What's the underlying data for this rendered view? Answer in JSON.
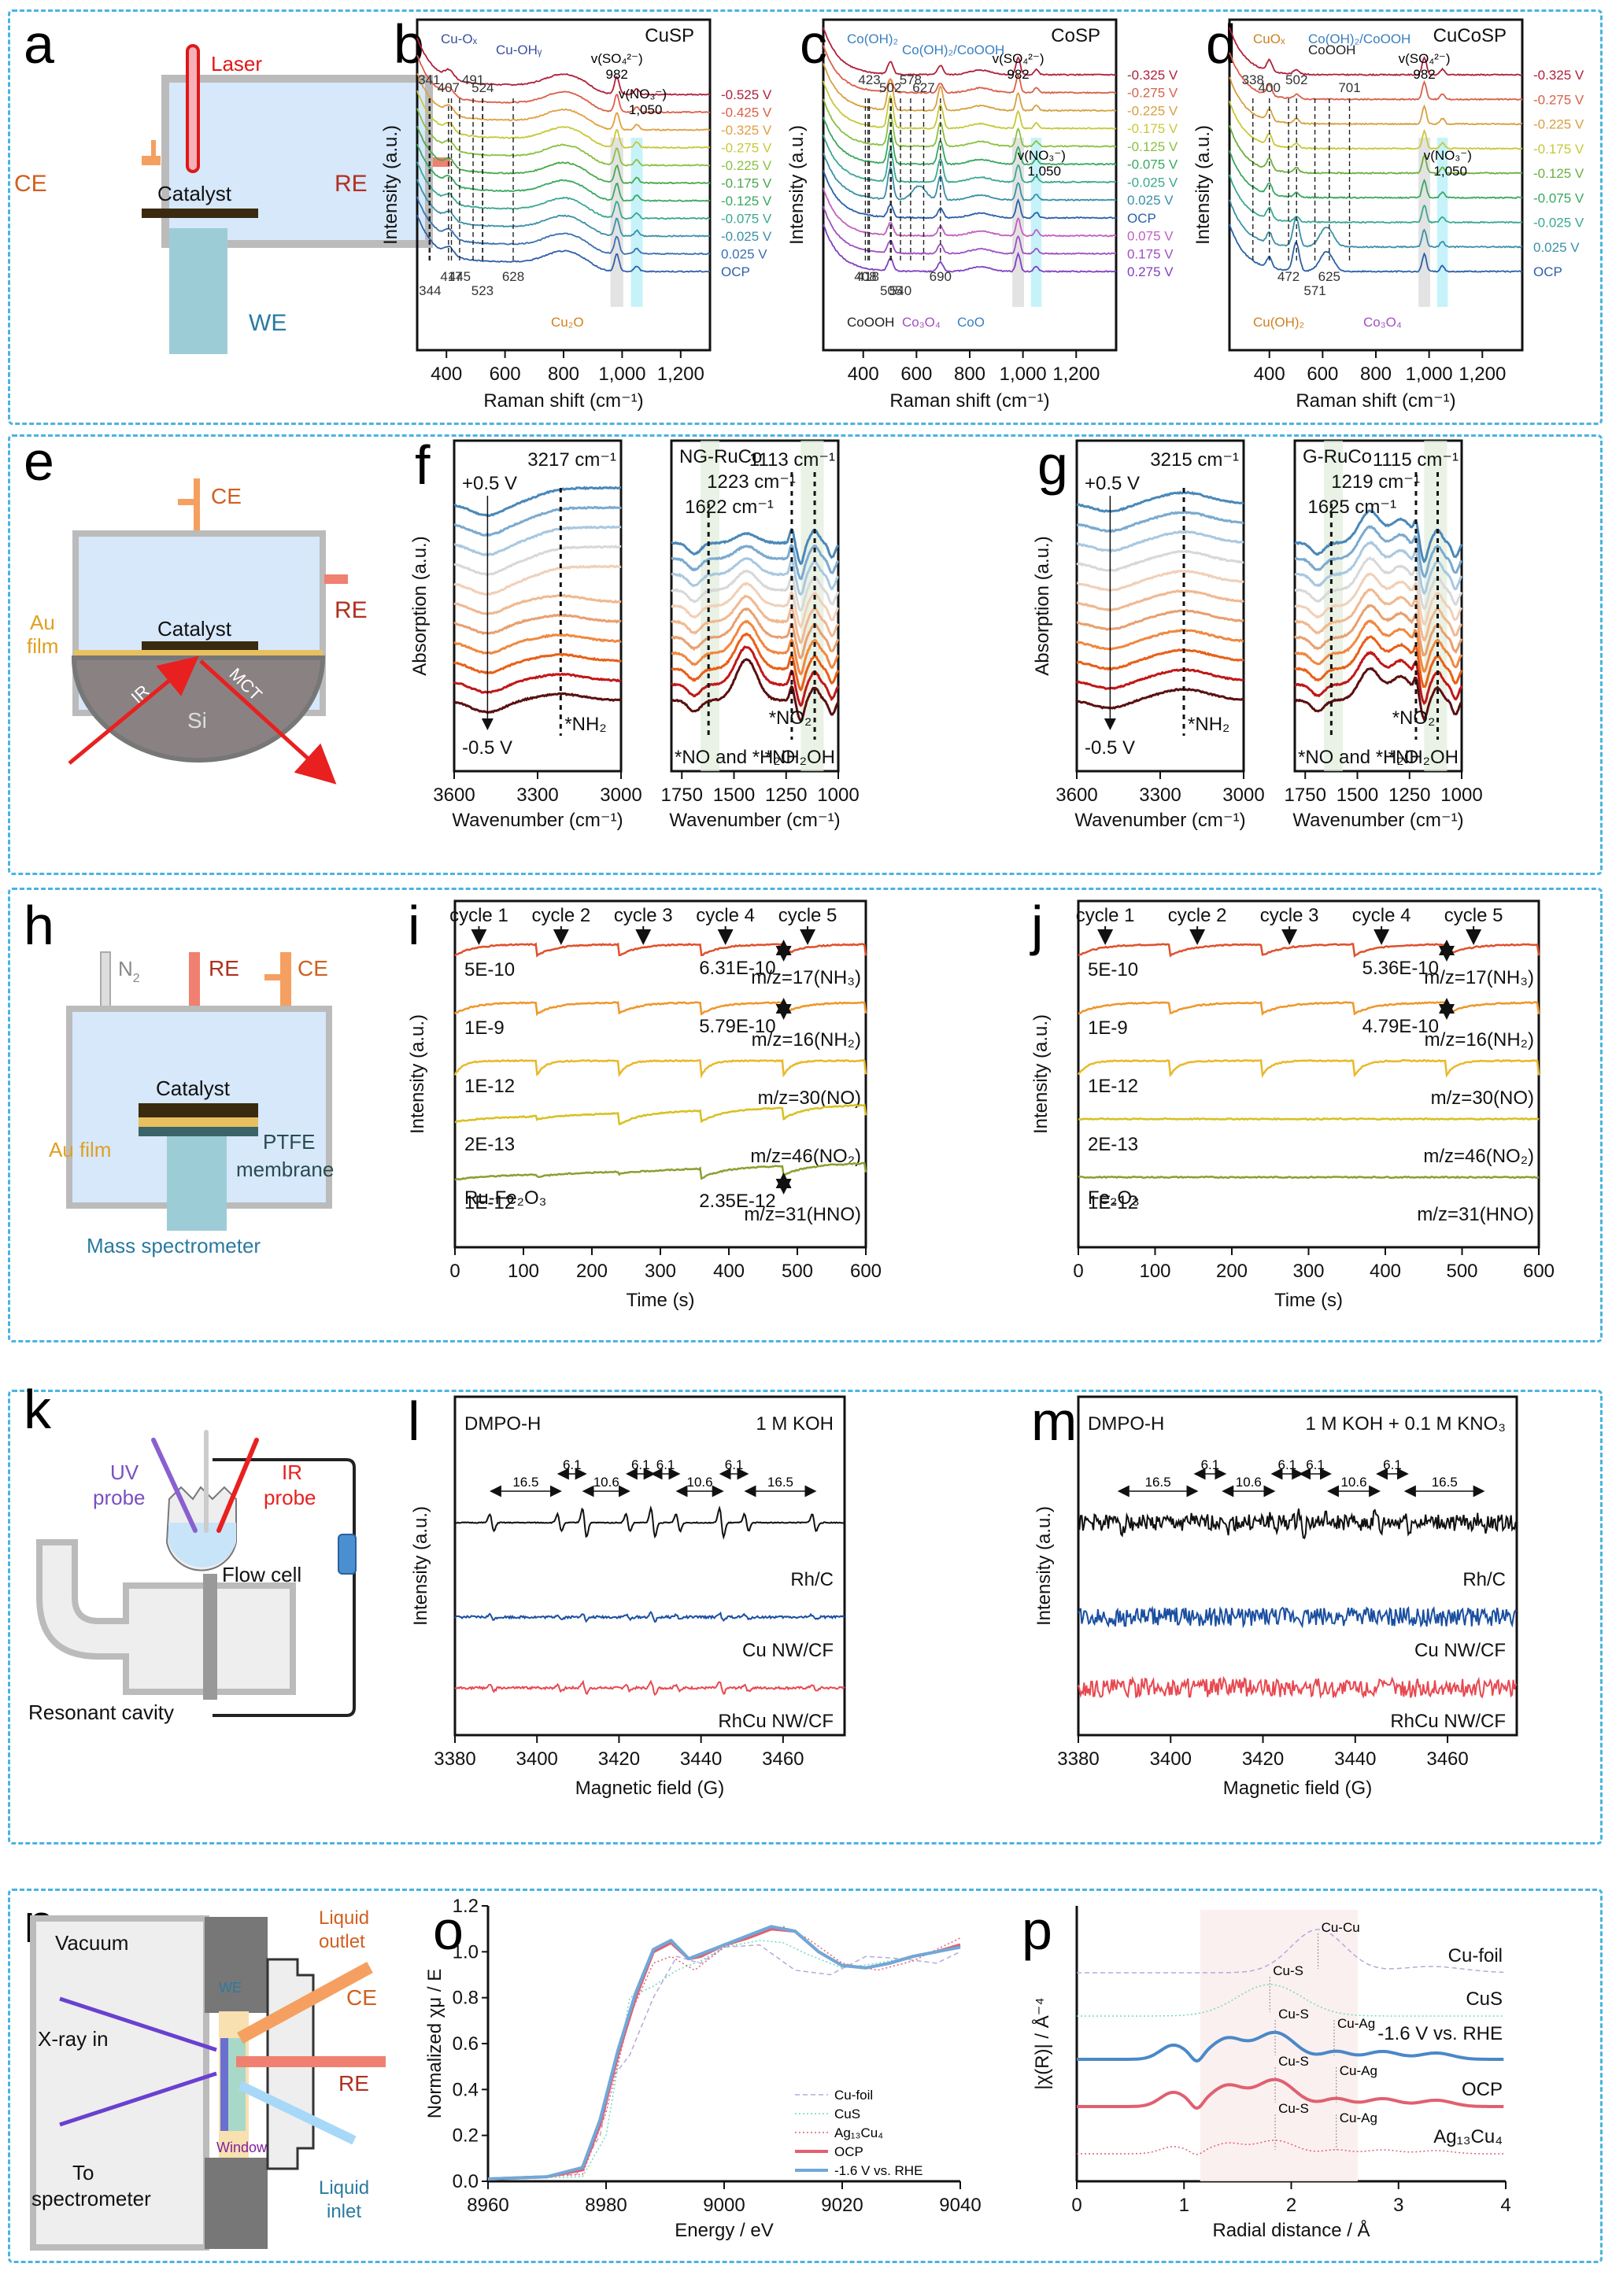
{
  "figure": {
    "panels": {
      "a": {
        "label": "a",
        "laser": "Laser",
        "ce": "CE",
        "re": "RE",
        "catalyst": "Catalyst",
        "we": "WE"
      },
      "e": {
        "label": "e",
        "ce": "CE",
        "re": "RE",
        "catalyst": "Catalyst",
        "au_film_1": "Au",
        "au_film_2": "film",
        "ir": "IR",
        "mct": "MCT",
        "si": "Si"
      },
      "h": {
        "label": "h",
        "n2": "N",
        "n2_sub": "2",
        "re": "RE",
        "ce": "CE",
        "catalyst": "Catalyst",
        "au_film": "Au film",
        "ptfe_1": "PTFE",
        "ptfe_2": "membrane",
        "ms": "Mass spectrometer"
      },
      "k": {
        "label": "k",
        "uv_1": "UV",
        "uv_2": "probe",
        "ir_1": "IR",
        "ir_2": "probe",
        "flow_cell": "Flow cell",
        "cavity": "Resonant cavity"
      },
      "n": {
        "label": "n",
        "vacuum": "Vacuum",
        "xray": "X-ray in",
        "to": "To",
        "spectrometer": "spectrometer",
        "window": "Window",
        "we": "WE",
        "ce": "CE",
        "re": "RE",
        "outlet_1": "Liquid",
        "outlet_2": "outlet",
        "inlet_1": "Liquid",
        "inlet_2": "inlet"
      }
    }
  },
  "chart_data": [
    {
      "id": "b",
      "type": "line",
      "panel_label": "b",
      "title": "CuSP",
      "xlabel": "Raman shift (cm⁻¹)",
      "ylabel": "Intensity (a.u.)",
      "xlim": [
        300,
        1300
      ],
      "xticks": [
        "400",
        "600",
        "800",
        "1,000",
        "1,200"
      ],
      "xtick_values": [
        400,
        600,
        800,
        1000,
        1200
      ],
      "series_labels": [
        "-0.525 V",
        "-0.425 V",
        "-0.325 V",
        "-0.275 V",
        "-0.225 V",
        "-0.175 V",
        "-0.125 V",
        "-0.075 V",
        "-0.025 V",
        "0.025 V",
        "OCP"
      ],
      "series_colors": [
        "#b0203a",
        "#d9604a",
        "#e0a040",
        "#c8c83a",
        "#8ac040",
        "#4aa84a",
        "#3aa860",
        "#3aa890",
        "#3a90a8",
        "#3a70b0",
        "#3060a8"
      ],
      "peaks": [
        341,
        407,
        491,
        524,
        445,
        344,
        417,
        523,
        628,
        982,
        1050
      ],
      "annotations": {
        "cu_ox": "Cu-Oₓ",
        "cu_oh": "Cu-OHᵧ",
        "cu2o": "Cu₂O",
        "so4": "v(SO₄²⁻)",
        "so4_val": "982",
        "no3": "v(NO₃⁻)",
        "no3_val": "1,050",
        "p341": "341",
        "p407": "407",
        "p491": "491",
        "p524": "524",
        "p445": "445",
        "p344": "344",
        "p417": "417",
        "p523": "523",
        "p628": "628"
      }
    },
    {
      "id": "c",
      "type": "line",
      "panel_label": "c",
      "title": "CoSP",
      "xlabel": "Raman shift (cm⁻¹)",
      "ylabel": "Intensity (a.u.)",
      "xlim": [
        250,
        1350
      ],
      "xticks": [
        "400",
        "600",
        "800",
        "1,000",
        "1,200"
      ],
      "xtick_values": [
        400,
        600,
        800,
        1000,
        1200
      ],
      "series_labels": [
        "-0.325 V",
        "-0.275 V",
        "-0.225 V",
        "-0.175 V",
        "-0.125 V",
        "-0.075 V",
        "-0.025 V",
        "0.025 V",
        "OCP",
        "0.075 V",
        "0.175 V",
        "0.275 V"
      ],
      "series_colors": [
        "#b0203a",
        "#d9604a",
        "#d8a040",
        "#c8c83a",
        "#8ac040",
        "#3aa860",
        "#3aa890",
        "#3a90a8",
        "#2a60a8",
        "#c060c0",
        "#a050c0",
        "#8040c0"
      ],
      "peaks": [
        423,
        502,
        578,
        627,
        408,
        540,
        418,
        505,
        690,
        982,
        1050
      ],
      "annotations": {
        "coh2": "Co(OH)₂",
        "cooh_mix": "Co(OH)₂/CoOOH",
        "coo": "CoO",
        "cooh": "CoOOH",
        "co3o4": "Co₃O₄",
        "so4": "v(SO₄²⁻)",
        "so4_val": "982",
        "no3": "v(NO₃⁻)",
        "no3_val": "1,050",
        "p423": "423",
        "p502": "502",
        "p578": "578",
        "p627": "627",
        "p408": "408",
        "p540": "540",
        "p418": "418",
        "p505": "505",
        "p690": "690"
      }
    },
    {
      "id": "d",
      "type": "line",
      "panel_label": "d",
      "title": "CuCoSP",
      "xlabel": "Raman shift (cm⁻¹)",
      "ylabel": "Intensity (a.u.)",
      "xlim": [
        250,
        1350
      ],
      "xticks": [
        "400",
        "600",
        "800",
        "1,000",
        "1,200"
      ],
      "xtick_values": [
        400,
        600,
        800,
        1000,
        1200
      ],
      "series_labels": [
        "-0.325 V",
        "-0.275 V",
        "-0.225 V",
        "-0.175 V",
        "-0.125 V",
        "-0.075 V",
        "-0.025 V",
        "0.025 V",
        "OCP"
      ],
      "series_colors": [
        "#b0203a",
        "#d9604a",
        "#d8a040",
        "#c8c83a",
        "#6ab040",
        "#3aa860",
        "#3aa890",
        "#3a90a8",
        "#2a60a8"
      ],
      "peaks": [
        338,
        400,
        502,
        701,
        472,
        571,
        625,
        982,
        1050
      ],
      "annotations": {
        "cuox": "CuOₓ",
        "cooh": "CoOOH",
        "co3o4": "Co₃O₄",
        "cuoh2": "Cu(OH)₂",
        "cooh_mix": "Co(OH)₂/CoOOH",
        "so4": "v(SO₄²⁻)",
        "so4_val": "982",
        "no3": "v(NO₃⁻)",
        "no3_val": "1,050",
        "p338": "338",
        "p400": "400",
        "p502": "502",
        "p701": "701",
        "p472": "472",
        "p571": "571",
        "p625": "625"
      }
    },
    {
      "id": "f1",
      "type": "line",
      "panel_label": "f",
      "xlabel": "Wavenumber (cm⁻¹)",
      "ylabel": "Absorption (a.u.)",
      "xlim": [
        3600,
        3000
      ],
      "xticks": [
        "3600",
        "3300",
        "3000"
      ],
      "xtick_values": [
        3600,
        3300,
        3000
      ],
      "peak": "3217 cm⁻¹",
      "peak_value": 3217,
      "top_label": "+0.5 V",
      "bottom_label": "-0.5 V",
      "species": "*NH₂",
      "curve_count": 11
    },
    {
      "id": "f2",
      "type": "line",
      "sample": "NG-RuCo",
      "xlabel": "Wavenumber (cm⁻¹)",
      "xlim": [
        1800,
        1000
      ],
      "xticks": [
        "1750",
        "1500",
        "1250",
        "1000"
      ],
      "xtick_values": [
        1750,
        1500,
        1250,
        1000
      ],
      "peaks": [
        "1622 cm⁻¹",
        "1223 cm⁻¹",
        "1113 cm⁻¹"
      ],
      "peak_values": [
        1622,
        1223,
        1113
      ],
      "species": [
        "*NO and *H₂O",
        "*NO₂",
        "*NH₂OH"
      ],
      "curve_count": 11
    },
    {
      "id": "g1",
      "type": "line",
      "panel_label": "g",
      "xlabel": "Wavenumber (cm⁻¹)",
      "ylabel": "Absorption (a.u.)",
      "xlim": [
        3600,
        3000
      ],
      "xticks": [
        "3600",
        "3300",
        "3000"
      ],
      "xtick_values": [
        3600,
        3300,
        3000
      ],
      "peak": "3215 cm⁻¹",
      "peak_value": 3215,
      "top_label": "+0.5 V",
      "bottom_label": "-0.5 V",
      "species": "*NH₂",
      "curve_count": 11
    },
    {
      "id": "g2",
      "type": "line",
      "sample": "G-RuCo",
      "xlabel": "Wavenumber (cm⁻¹)",
      "xlim": [
        1800,
        1000
      ],
      "xticks": [
        "1750",
        "1500",
        "1250",
        "1000"
      ],
      "xtick_values": [
        1750,
        1500,
        1250,
        1000
      ],
      "peaks": [
        "1625 cm⁻¹",
        "1219 cm⁻¹",
        "1115 cm⁻¹"
      ],
      "peak_values": [
        1625,
        1219,
        1115
      ],
      "species": [
        "*NO and *H₂O",
        "*NO₂",
        "*NH₂OH"
      ],
      "curve_count": 11
    },
    {
      "id": "i",
      "type": "line",
      "panel_label": "i",
      "sample": "Ru-Fe₂O₃",
      "xlabel": "Time (s)",
      "ylabel": "Intensity (a.u.)",
      "xlim": [
        0,
        600
      ],
      "xticks": [
        "0",
        "100",
        "200",
        "300",
        "400",
        "500",
        "600"
      ],
      "xtick_values": [
        0,
        100,
        200,
        300,
        400,
        500,
        600
      ],
      "cycles": [
        "cycle 1",
        "cycle 2",
        "cycle 3",
        "cycle 4",
        "cycle 5"
      ],
      "cycle_starts": [
        0,
        120,
        240,
        360,
        480
      ],
      "series": [
        {
          "name": "m/z=17(NH₃)",
          "scale": "5E-10",
          "color": "#e0502a",
          "drop": "6.31E-10",
          "active": true
        },
        {
          "name": "m/z=16(NH₂)",
          "scale": "1E-9",
          "color": "#f0962a",
          "drop": "5.79E-10",
          "active": true
        },
        {
          "name": "m/z=30(NO)",
          "scale": "1E-12",
          "color": "#eab82a",
          "active": true
        },
        {
          "name": "m/z=46(NO₂)",
          "scale": "2E-13",
          "color": "#d8c020",
          "active": true
        },
        {
          "name": "m/z=31(HNO)",
          "scale": "1E-12",
          "color": "#8aa030",
          "drop": "2.35E-12",
          "active": true
        }
      ]
    },
    {
      "id": "j",
      "type": "line",
      "panel_label": "j",
      "sample": "Fe₂O₃",
      "xlabel": "Time (s)",
      "ylabel": "Intensity (a.u.)",
      "xlim": [
        0,
        600
      ],
      "xticks": [
        "0",
        "100",
        "200",
        "300",
        "400",
        "500",
        "600"
      ],
      "xtick_values": [
        0,
        100,
        200,
        300,
        400,
        500,
        600
      ],
      "cycles": [
        "cycle 1",
        "cycle 2",
        "cycle 3",
        "cycle 4",
        "cycle 5"
      ],
      "cycle_starts": [
        0,
        120,
        240,
        360,
        480
      ],
      "series": [
        {
          "name": "m/z=17(NH₃)",
          "scale": "5E-10",
          "color": "#e0502a",
          "drop": "5.36E-10",
          "active": true
        },
        {
          "name": "m/z=16(NH₂)",
          "scale": "1E-9",
          "color": "#f0962a",
          "drop": "4.79E-10",
          "active": true
        },
        {
          "name": "m/z=30(NO)",
          "scale": "1E-12",
          "color": "#eab82a",
          "active": true
        },
        {
          "name": "m/z=46(NO₂)",
          "scale": "2E-13",
          "color": "#d8c020",
          "active": false
        },
        {
          "name": "m/z=31(HNO)",
          "scale": "1E-12",
          "color": "#8aa030",
          "active": false
        }
      ]
    },
    {
      "id": "l",
      "type": "line",
      "panel_label": "l",
      "title_left": "DMPO-H",
      "title_right": "1 M KOH",
      "xlabel": "Magnetic field (G)",
      "ylabel": "Intensity (a.u.)",
      "xlim": [
        3380,
        3475
      ],
      "xticks": [
        "3380",
        "3400",
        "3420",
        "3440",
        "3460"
      ],
      "xtick_values": [
        3380,
        3400,
        3420,
        3440,
        3460
      ],
      "line_positions": [
        3389,
        3405.5,
        3411.6,
        3422.2,
        3428.3,
        3434.4,
        3445,
        3451.1,
        3467.6
      ],
      "splittings": [
        "16.5",
        "6.1",
        "10.6",
        "6.1",
        "6.1",
        "10.6",
        "6.1",
        "16.5"
      ],
      "series": [
        {
          "name": "Rh/C",
          "color": "#111111",
          "amp": 1.0,
          "noise": 0.02
        },
        {
          "name": "Cu NW/CF",
          "color": "#1a4fa0",
          "amp": 0.28,
          "noise": 0.05
        },
        {
          "name": "RhCu NW/CF",
          "color": "#e84850",
          "amp": 0.4,
          "noise": 0.05
        }
      ]
    },
    {
      "id": "m",
      "type": "line",
      "panel_label": "m",
      "title_left": "DMPO-H",
      "title_right": "1 M KOH + 0.1 M KNO₃",
      "xlabel": "Magnetic field (G)",
      "ylabel": "Intensity (a.u.)",
      "xlim": [
        3380,
        3475
      ],
      "xticks": [
        "3380",
        "3400",
        "3420",
        "3440",
        "3460"
      ],
      "xtick_values": [
        3380,
        3400,
        3420,
        3440,
        3460
      ],
      "line_positions": [
        3389,
        3405.5,
        3411.6,
        3422.2,
        3428.3,
        3434.4,
        3445,
        3451.1,
        3467.6
      ],
      "splittings": [
        "16.5",
        "6.1",
        "10.6",
        "6.1",
        "6.1",
        "10.6",
        "6.1",
        "16.5"
      ],
      "series": [
        {
          "name": "Rh/C",
          "color": "#111111",
          "amp": 0.6,
          "noise": 0.35
        },
        {
          "name": "Cu NW/CF",
          "color": "#1a4fa0",
          "amp": 0.05,
          "noise": 0.4
        },
        {
          "name": "RhCu NW/CF",
          "color": "#e84850",
          "amp": 0.05,
          "noise": 0.4
        }
      ]
    },
    {
      "id": "o",
      "type": "line",
      "panel_label": "o",
      "xlabel": "Energy / eV",
      "ylabel": "Normalized χμ / E",
      "xlim": [
        8960,
        9040
      ],
      "ylim": [
        0,
        1.2
      ],
      "xticks": [
        "8960",
        "8980",
        "9000",
        "9020",
        "9040"
      ],
      "xtick_values": [
        8960,
        8980,
        9000,
        9020,
        9040
      ],
      "yticks": [
        "0.0",
        "0.2",
        "0.4",
        "0.6",
        "0.8",
        "1.0",
        "1.2"
      ],
      "ytick_values": [
        0,
        0.2,
        0.4,
        0.6,
        0.8,
        1.0,
        1.2
      ],
      "legend_position": "bottom-right",
      "series": [
        {
          "name": "Cu-foil",
          "color": "#b8a8d8",
          "style": "dashed",
          "x": [
            8960,
            8975,
            8979,
            8981,
            8984,
            8988,
            8992,
            8996,
            9000,
            9006,
            9012,
            9018,
            9024,
            9030,
            9036,
            9040
          ],
          "y": [
            0.01,
            0.03,
            0.2,
            0.45,
            0.55,
            0.8,
            0.98,
            0.95,
            1.02,
            1.03,
            0.92,
            0.9,
            0.98,
            0.97,
            0.95,
            1.0
          ]
        },
        {
          "name": "CuS",
          "color": "#70d8c0",
          "style": "dotted",
          "x": [
            8960,
            8976,
            8980,
            8984,
            8988,
            8992,
            8996,
            9000,
            9006,
            9010,
            9014,
            9020,
            9026,
            9032,
            9040
          ],
          "y": [
            0.01,
            0.02,
            0.2,
            0.8,
            0.85,
            0.92,
            0.96,
            1.02,
            1.05,
            1.04,
            0.99,
            0.93,
            0.95,
            0.98,
            1.02
          ]
        },
        {
          "name": "Ag₁₃Cu₄",
          "color": "#e06070",
          "style": "dotted",
          "x": [
            8960,
            8976,
            8980,
            8984,
            8988,
            8991,
            8995,
            9000,
            9006,
            9010,
            9014,
            9020,
            9026,
            9032,
            9040
          ],
          "y": [
            0.01,
            0.03,
            0.3,
            0.72,
            0.95,
            0.98,
            0.92,
            1.02,
            1.08,
            1.11,
            1.06,
            0.95,
            0.92,
            0.96,
            1.06
          ]
        },
        {
          "name": "OCP",
          "color": "#e06070",
          "style": "solid",
          "x": [
            8960,
            8970,
            8976,
            8979,
            8982,
            8985,
            8988,
            8991,
            8994,
            8996,
            9000,
            9004,
            9008,
            9012,
            9016,
            9020,
            9024,
            9028,
            9032,
            9036,
            9040
          ],
          "y": [
            0.01,
            0.02,
            0.05,
            0.25,
            0.55,
            0.8,
            1.0,
            1.04,
            0.97,
            0.98,
            1.03,
            1.06,
            1.1,
            1.09,
            1.0,
            0.94,
            0.93,
            0.95,
            0.98,
            1.0,
            1.03
          ]
        },
        {
          "name": "-1.6 V vs. RHE",
          "color": "#70a8d8",
          "style": "solid",
          "x": [
            8960,
            8970,
            8976,
            8979,
            8982,
            8985,
            8988,
            8991,
            8994,
            8996,
            9000,
            9004,
            9008,
            9012,
            9016,
            9020,
            9024,
            9028,
            9032,
            9036,
            9040
          ],
          "y": [
            0.01,
            0.02,
            0.06,
            0.27,
            0.57,
            0.82,
            1.01,
            1.05,
            0.97,
            0.99,
            1.03,
            1.07,
            1.11,
            1.09,
            1.0,
            0.94,
            0.93,
            0.95,
            0.98,
            1.0,
            1.02
          ]
        }
      ]
    },
    {
      "id": "p",
      "type": "line",
      "panel_label": "p",
      "xlabel": "Radial distance / Å",
      "ylabel": "|χ(R)| / Å⁻⁴",
      "xlim": [
        0,
        4
      ],
      "xticks": [
        "0",
        "1",
        "2",
        "3",
        "4"
      ],
      "xtick_values": [
        0,
        1,
        2,
        3,
        4
      ],
      "shaded_region": [
        1.15,
        2.62
      ],
      "series": [
        {
          "name": "Cu-foil",
          "color": "#b8a8d8",
          "style": "dashed",
          "peak_label": "Cu-Cu",
          "peak_r": 2.25
        },
        {
          "name": "CuS",
          "color": "#70d8c0",
          "style": "dotted",
          "peak_label": "Cu-S",
          "peak_r": 1.8
        },
        {
          "name": "-1.6 V vs. RHE",
          "color": "#4a88c8",
          "style": "solid",
          "peak_labels": [
            "Cu-S",
            "Cu-Ag"
          ],
          "peak_rs": [
            1.85,
            2.4
          ]
        },
        {
          "name": "OCP",
          "color": "#e06070",
          "style": "solid",
          "peak_labels": [
            "Cu-S",
            "Cu-Ag"
          ],
          "peak_rs": [
            1.85,
            2.42
          ]
        },
        {
          "name": "Ag₁₃Cu₄",
          "color": "#e06070",
          "style": "dotted",
          "peak_labels": [
            "Cu-S",
            "Cu-Ag"
          ],
          "peak_rs": [
            1.85,
            2.42
          ]
        }
      ]
    }
  ]
}
